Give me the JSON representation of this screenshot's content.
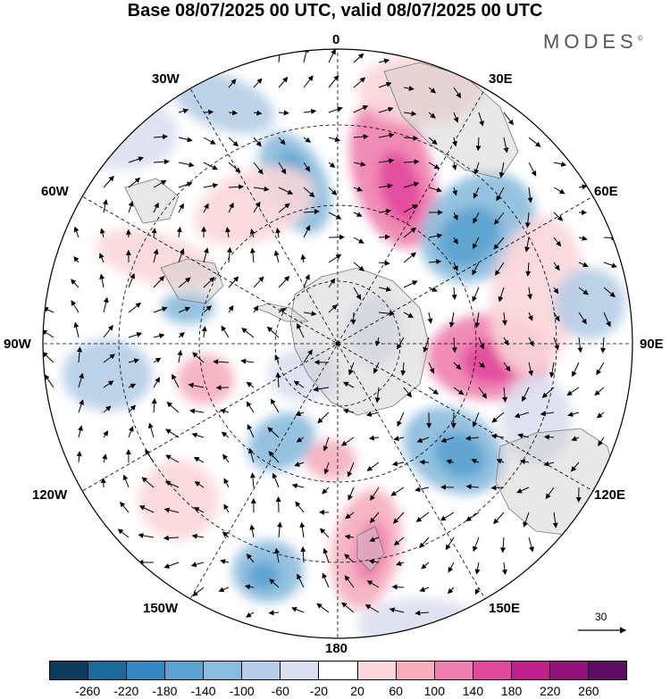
{
  "title": "Base 08/07/2025 00 UTC, valid 08/07/2025 00 UTC",
  "brand": "MODES",
  "brand_mark": "©",
  "longitude_labels": {
    "n0": "0",
    "e30": "30E",
    "e60": "60E",
    "e90": "90E",
    "e120": "120E",
    "e150": "150E",
    "s180": "180",
    "w150": "150W",
    "w120": "120W",
    "w90": "90W",
    "w60": "60W",
    "w30": "30W"
  },
  "reference_vector": {
    "label": "30"
  },
  "colorbar": {
    "colors": [
      "#0d3b5c",
      "#1b6a9c",
      "#3487c0",
      "#5aa2cf",
      "#89bbdc",
      "#b5cde6",
      "#dcdff0",
      "#ffffff",
      "#fbd7d9",
      "#f6aebc",
      "#ee7fae",
      "#e2499c",
      "#c01f8c",
      "#921378",
      "#5e0d64"
    ],
    "ticks": [
      "-260",
      "-220",
      "-180",
      "-140",
      "-100",
      "-60",
      "-20",
      "20",
      "60",
      "100",
      "140",
      "180",
      "220",
      "260"
    ]
  }
}
